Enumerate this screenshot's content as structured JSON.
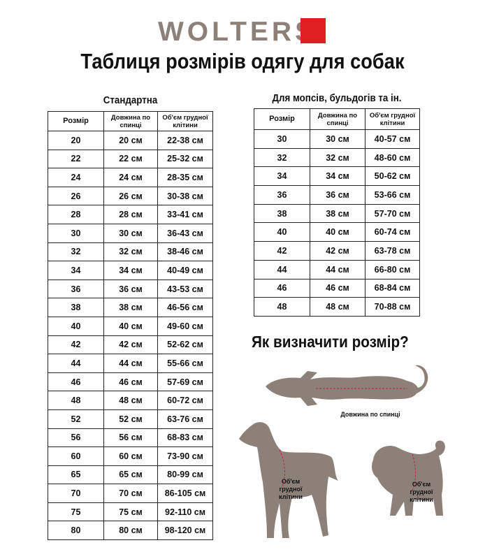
{
  "brand": {
    "name": "WOLTERS",
    "accent": "#e02020",
    "logo_color": "#8c8079"
  },
  "title": "Таблиця розмірів одягу для собак",
  "standard": {
    "caption": "Стандартна",
    "headers": [
      "Розмір",
      "Довжина по спинці",
      "Об'єм грудної клітини"
    ],
    "rows": [
      [
        "20",
        "20 см",
        "22-38 см"
      ],
      [
        "22",
        "22 см",
        "25-32 см"
      ],
      [
        "24",
        "24 см",
        "28-35 см"
      ],
      [
        "26",
        "26 см",
        "30-38 см"
      ],
      [
        "28",
        "28 см",
        "33-41 см"
      ],
      [
        "30",
        "30 см",
        "36-43 см"
      ],
      [
        "32",
        "32 см",
        "38-46 см"
      ],
      [
        "34",
        "34 см",
        "40-49 см"
      ],
      [
        "36",
        "36 см",
        "43-53 см"
      ],
      [
        "38",
        "38 см",
        "46-56 см"
      ],
      [
        "40",
        "40 см",
        "49-60 см"
      ],
      [
        "42",
        "42 см",
        "52-62 см"
      ],
      [
        "44",
        "44 см",
        "55-66 см"
      ],
      [
        "46",
        "46 см",
        "57-69 см"
      ],
      [
        "48",
        "48 см",
        "60-72 см"
      ],
      [
        "52",
        "52 см",
        "63-76 см"
      ],
      [
        "56",
        "56 см",
        "68-83 см"
      ],
      [
        "60",
        "60 см",
        "73-90 см"
      ],
      [
        "65",
        "65 см",
        "80-99 см"
      ],
      [
        "70",
        "70 см",
        "86-105 см"
      ],
      [
        "75",
        "75 см",
        "92-110 см"
      ],
      [
        "80",
        "80 см",
        "98-120 см"
      ]
    ]
  },
  "pugs": {
    "caption": "Для мопсів, бульдогів та ін.",
    "headers": [
      "Розмір",
      "Довжина по спинці",
      "Об'єм грудної клітини"
    ],
    "rows": [
      [
        "30",
        "30 см",
        "40-57 см"
      ],
      [
        "32",
        "32 см",
        "48-60 см"
      ],
      [
        "34",
        "34 см",
        "50-62 см"
      ],
      [
        "36",
        "36 см",
        "53-66 см"
      ],
      [
        "38",
        "38 см",
        "57-70 см"
      ],
      [
        "40",
        "40 см",
        "60-74 см"
      ],
      [
        "42",
        "42 см",
        "63-78 см"
      ],
      [
        "44",
        "44 см",
        "66-80 см"
      ],
      [
        "46",
        "46 см",
        "68-84 см"
      ],
      [
        "48",
        "48 см",
        "70-88 см"
      ]
    ]
  },
  "how": {
    "title": "Як визначити розмір?",
    "back_label": "Довжина по спинці",
    "chest_label_lines": [
      "Об'єм",
      "грудної",
      "клітини"
    ]
  }
}
